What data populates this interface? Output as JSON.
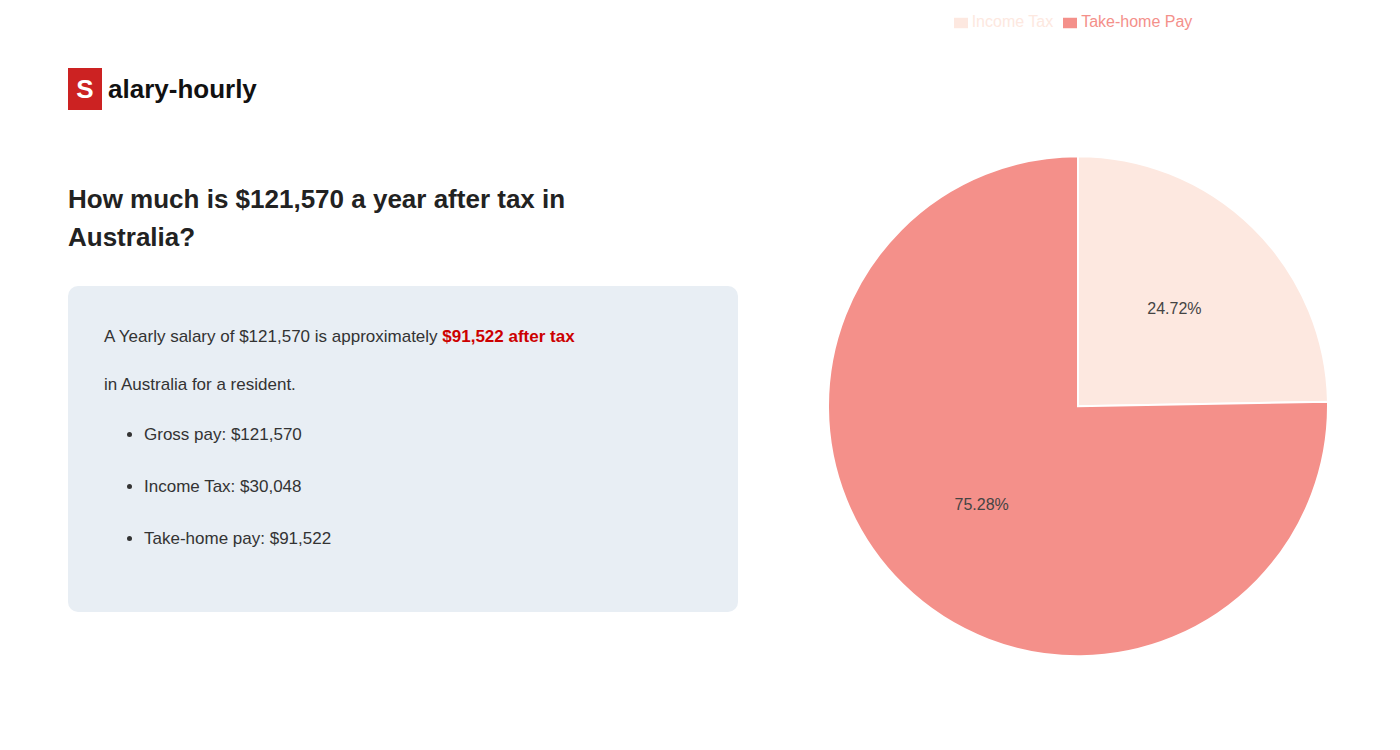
{
  "chart_data": {
    "type": "pie",
    "title": [
      "How much is $121,570 a year after tax in",
      "Australia?"
    ],
    "logo": {
      "box": "S",
      "text": "alary-hourly",
      "color": "#cc2222"
    },
    "annotations": [
      {
        "parts": [
          {
            "text": "A Yearly salary of $121,570 is approximately "
          },
          {
            "text": "$91,522 after tax",
            "color": "#cc0000"
          }
        ]
      },
      {
        "parts": [
          {
            "text": "in Australia for a resident."
          }
        ]
      }
    ],
    "bullets": [
      "Gross pay: $121,570",
      "Income Tax: $30,048",
      "Take-home pay: $91,522"
    ],
    "categories": [
      "Income Tax",
      "Take-home Pay"
    ],
    "values": [
      24.72,
      75.28
    ],
    "value_labels": [
      "24.72%",
      "75.28%"
    ],
    "colors": [
      "#fde8e0",
      "#f4908a"
    ],
    "data_labels": true,
    "legend": "top"
  }
}
